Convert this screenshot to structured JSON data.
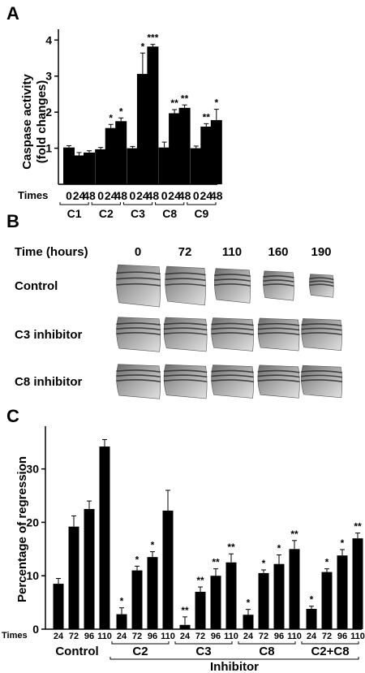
{
  "panels": {
    "a_letter": "A",
    "b_letter": "B",
    "c_letter": "C"
  },
  "chart_a": {
    "type": "bar",
    "ylabel_line1": "Caspase activity",
    "ylabel_line2": "(fold changes)",
    "ylim": [
      0,
      4.3
    ],
    "yticks": [
      "1",
      "2",
      "3",
      "4"
    ],
    "times_label": "Times",
    "groups": [
      {
        "name": "C1",
        "times": [
          "0",
          "24",
          "48"
        ],
        "values": [
          1.02,
          0.8,
          0.88
        ],
        "errors": [
          0.05,
          0.08,
          0.05
        ],
        "stars": [
          "",
          "",
          ""
        ]
      },
      {
        "name": "C2",
        "times": [
          "0",
          "24",
          "48"
        ],
        "values": [
          0.97,
          1.56,
          1.75
        ],
        "errors": [
          0.05,
          0.1,
          0.09
        ],
        "stars": [
          "",
          "*",
          "*"
        ]
      },
      {
        "name": "C3",
        "times": [
          "0",
          "24",
          "48"
        ],
        "values": [
          1.0,
          3.06,
          3.82
        ],
        "errors": [
          0.05,
          0.58,
          0.06
        ],
        "stars": [
          "",
          "*",
          "***"
        ]
      },
      {
        "name": "C8",
        "times": [
          "0",
          "24",
          "48"
        ],
        "values": [
          1.02,
          1.97,
          2.12
        ],
        "errors": [
          0.15,
          0.1,
          0.08
        ],
        "stars": [
          "",
          "**",
          "**"
        ]
      },
      {
        "name": "C9",
        "times": [
          "0",
          "24",
          "48"
        ],
        "values": [
          1.0,
          1.6,
          1.78
        ],
        "errors": [
          0.06,
          0.08,
          0.3
        ],
        "stars": [
          "",
          "**",
          "*"
        ]
      }
    ]
  },
  "panel_b": {
    "header_label": "Time (hours)",
    "times": [
      "0",
      "72",
      "110",
      "160",
      "190"
    ],
    "rows": [
      {
        "label": "Control",
        "scale": [
          1.0,
          0.92,
          0.82,
          0.7,
          0.55
        ]
      },
      {
        "label": "C3 inhibitor",
        "scale": [
          1.0,
          0.98,
          0.96,
          0.94,
          0.92
        ]
      },
      {
        "label": "C8 inhibitor",
        "scale": [
          1.0,
          0.98,
          0.96,
          0.95,
          0.93
        ]
      }
    ]
  },
  "chart_c": {
    "type": "bar",
    "ylabel": "Percentage of regression",
    "ylim": [
      0,
      38
    ],
    "yticks": [
      "0",
      "10",
      "20",
      "30"
    ],
    "times_label": "Times",
    "inhibitor_label": "Inhibitor",
    "groups": [
      {
        "name": "Control",
        "times": [
          "24",
          "72",
          "96",
          "110"
        ],
        "values": [
          8.5,
          19.2,
          22.5,
          34.2
        ],
        "errors": [
          1.0,
          2.0,
          1.5,
          1.3
        ],
        "stars": [
          "",
          "",
          "",
          ""
        ]
      },
      {
        "name": "C2",
        "times": [
          "24",
          "72",
          "96",
          "110"
        ],
        "values": [
          2.8,
          11.0,
          13.5,
          22.2
        ],
        "errors": [
          1.2,
          0.8,
          1.0,
          3.8
        ],
        "stars": [
          "*",
          "*",
          "*",
          ""
        ]
      },
      {
        "name": "C3",
        "times": [
          "24",
          "72",
          "96",
          "110"
        ],
        "values": [
          0.8,
          7.0,
          10.0,
          12.5
        ],
        "errors": [
          1.5,
          0.9,
          1.3,
          1.6
        ],
        "stars": [
          "**",
          "**",
          "**",
          "**"
        ]
      },
      {
        "name": "C8",
        "times": [
          "24",
          "72",
          "96",
          "110"
        ],
        "values": [
          2.7,
          10.5,
          12.2,
          15.0
        ],
        "errors": [
          1.0,
          0.6,
          1.7,
          1.6
        ],
        "stars": [
          "*",
          "*",
          "*",
          "**"
        ]
      },
      {
        "name": "C2+C8",
        "times": [
          "24",
          "72",
          "96",
          "110"
        ],
        "values": [
          3.8,
          10.7,
          13.8,
          17.0
        ],
        "errors": [
          0.5,
          0.6,
          1.1,
          1.0
        ],
        "stars": [
          "*",
          "*",
          "*",
          "**"
        ]
      }
    ]
  },
  "colors": {
    "bar": "#000000",
    "image_dark": "#3a3a3a",
    "image_light": "#d8d8d8"
  }
}
